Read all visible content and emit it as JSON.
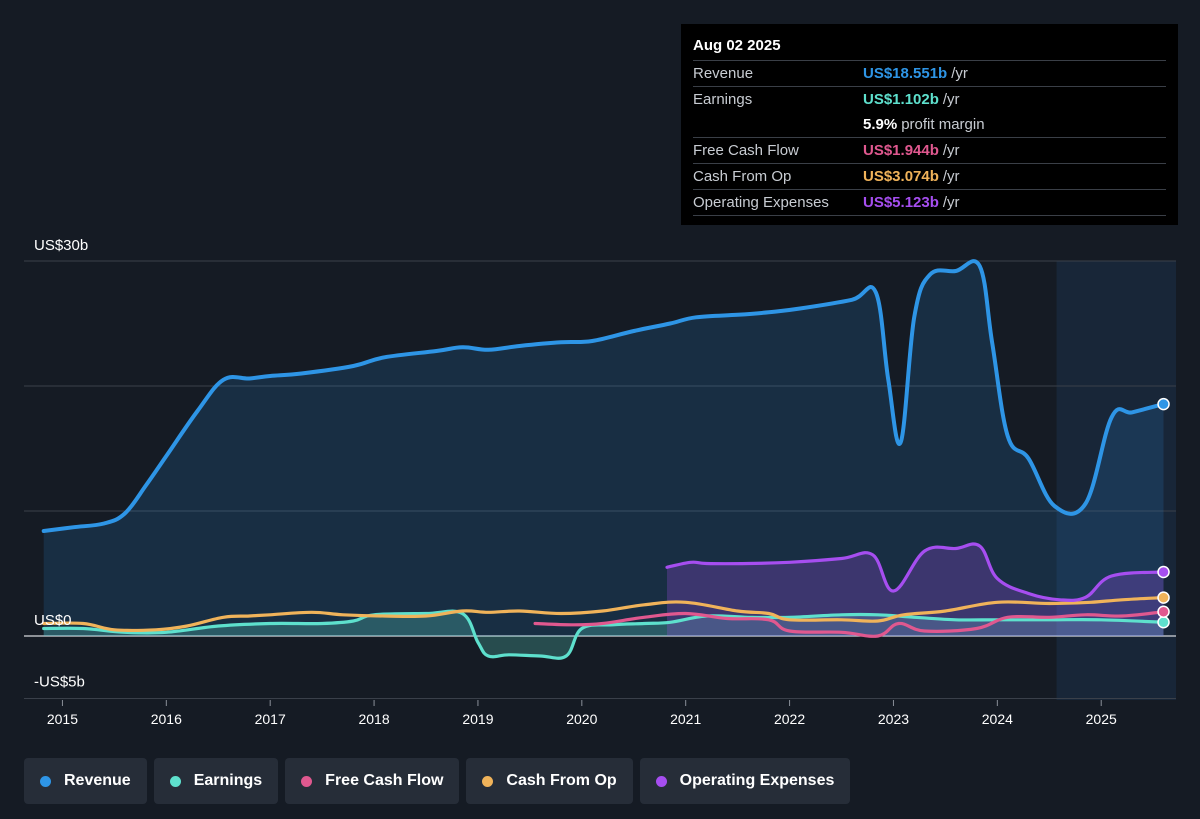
{
  "tooltip": {
    "date": "Aug 02 2025",
    "rows": [
      {
        "label": "Revenue",
        "value": "US$18.551b",
        "unit": "/yr",
        "color": "#2e95e6"
      },
      {
        "label": "Earnings",
        "value": "US$1.102b",
        "unit": "/yr",
        "color": "#5ee0cd"
      },
      {
        "label": "",
        "value": "5.9%",
        "unit": "profit margin",
        "color": "#ffffff"
      },
      {
        "label": "Free Cash Flow",
        "value": "US$1.944b",
        "unit": "/yr",
        "color": "#e0588f"
      },
      {
        "label": "Cash From Op",
        "value": "US$3.074b",
        "unit": "/yr",
        "color": "#f0b35a"
      },
      {
        "label": "Operating Expenses",
        "value": "US$5.123b",
        "unit": "/yr",
        "color": "#a64ef0"
      }
    ]
  },
  "legend": [
    {
      "label": "Revenue",
      "color": "#2e95e6"
    },
    {
      "label": "Earnings",
      "color": "#5ee0cd"
    },
    {
      "label": "Free Cash Flow",
      "color": "#e0588f"
    },
    {
      "label": "Cash From Op",
      "color": "#f0b35a"
    },
    {
      "label": "Operating Expenses",
      "color": "#a64ef0"
    }
  ],
  "chart_data": {
    "type": "line",
    "title": "",
    "xlabel": "",
    "ylabel": "",
    "xlim": [
      2014.63,
      2025.72
    ],
    "ylim": [
      -5,
      30
    ],
    "y_tick_labels": [
      {
        "value": 30,
        "label": "US$30b"
      },
      {
        "value": 0,
        "label": "US$0"
      },
      {
        "value": -5,
        "label": "-US$5b"
      }
    ],
    "gridlines": [
      30,
      20,
      10,
      0,
      -5
    ],
    "x_ticks": [
      "2015",
      "2016",
      "2017",
      "2018",
      "2019",
      "2020",
      "2021",
      "2022",
      "2023",
      "2024",
      "2025"
    ],
    "forecast_shade_start": 2024.57,
    "series": [
      {
        "name": "Revenue",
        "color": "#2e95e6",
        "fill": true,
        "points": [
          [
            2014.82,
            8.4
          ],
          [
            2015.1,
            8.7
          ],
          [
            2015.4,
            9.0
          ],
          [
            2015.6,
            9.8
          ],
          [
            2015.8,
            12.0
          ],
          [
            2016.0,
            14.4
          ],
          [
            2016.3,
            18.0
          ],
          [
            2016.55,
            20.5
          ],
          [
            2016.8,
            20.6
          ],
          [
            2017.0,
            20.8
          ],
          [
            2017.3,
            21.0
          ],
          [
            2017.8,
            21.6
          ],
          [
            2018.1,
            22.3
          ],
          [
            2018.6,
            22.8
          ],
          [
            2018.85,
            23.1
          ],
          [
            2019.1,
            22.9
          ],
          [
            2019.4,
            23.2
          ],
          [
            2019.8,
            23.5
          ],
          [
            2020.1,
            23.6
          ],
          [
            2020.5,
            24.4
          ],
          [
            2020.85,
            25.0
          ],
          [
            2021.1,
            25.5
          ],
          [
            2021.5,
            25.7
          ],
          [
            2021.8,
            25.9
          ],
          [
            2022.1,
            26.2
          ],
          [
            2022.6,
            26.9
          ],
          [
            2022.83,
            27.5
          ],
          [
            2022.95,
            20.5
          ],
          [
            2023.07,
            15.5
          ],
          [
            2023.2,
            25.5
          ],
          [
            2023.35,
            28.9
          ],
          [
            2023.6,
            29.2
          ],
          [
            2023.83,
            29.6
          ],
          [
            2023.95,
            23.5
          ],
          [
            2024.1,
            16.0
          ],
          [
            2024.3,
            14.2
          ],
          [
            2024.55,
            10.4
          ],
          [
            2024.85,
            10.6
          ],
          [
            2025.1,
            17.5
          ],
          [
            2025.3,
            17.9
          ],
          [
            2025.6,
            18.55
          ]
        ]
      },
      {
        "name": "Earnings",
        "color": "#5ee0cd",
        "fill": true,
        "points": [
          [
            2014.82,
            0.6
          ],
          [
            2015.2,
            0.6
          ],
          [
            2015.6,
            0.3
          ],
          [
            2016.0,
            0.3
          ],
          [
            2016.5,
            0.8
          ],
          [
            2017.0,
            1.0
          ],
          [
            2017.5,
            1.0
          ],
          [
            2017.8,
            1.2
          ],
          [
            2018.0,
            1.7
          ],
          [
            2018.5,
            1.8
          ],
          [
            2018.85,
            1.8
          ],
          [
            2019.0,
            -0.5
          ],
          [
            2019.1,
            -1.6
          ],
          [
            2019.3,
            -1.5
          ],
          [
            2019.6,
            -1.6
          ],
          [
            2019.85,
            -1.6
          ],
          [
            2020.0,
            0.6
          ],
          [
            2020.3,
            0.9
          ],
          [
            2020.6,
            1.0
          ],
          [
            2020.85,
            1.1
          ],
          [
            2021.2,
            1.6
          ],
          [
            2021.6,
            1.5
          ],
          [
            2022.0,
            1.5
          ],
          [
            2022.5,
            1.7
          ],
          [
            2022.85,
            1.7
          ],
          [
            2023.2,
            1.5
          ],
          [
            2023.6,
            1.3
          ],
          [
            2024.0,
            1.3
          ],
          [
            2024.5,
            1.3
          ],
          [
            2025.0,
            1.3
          ],
          [
            2025.6,
            1.1
          ]
        ]
      },
      {
        "name": "Free Cash Flow",
        "color": "#e0588f",
        "fill": false,
        "points": [
          [
            2019.55,
            1.0
          ],
          [
            2019.9,
            0.9
          ],
          [
            2020.2,
            1.0
          ],
          [
            2020.6,
            1.5
          ],
          [
            2021.0,
            1.8
          ],
          [
            2021.4,
            1.4
          ],
          [
            2021.8,
            1.3
          ],
          [
            2022.0,
            0.4
          ],
          [
            2022.5,
            0.3
          ],
          [
            2022.85,
            0.0
          ],
          [
            2023.05,
            1.0
          ],
          [
            2023.3,
            0.4
          ],
          [
            2023.8,
            0.6
          ],
          [
            2024.1,
            1.5
          ],
          [
            2024.5,
            1.5
          ],
          [
            2024.85,
            1.7
          ],
          [
            2025.2,
            1.6
          ],
          [
            2025.6,
            1.94
          ]
        ]
      },
      {
        "name": "Cash From Op",
        "color": "#f0b35a",
        "fill": false,
        "points": [
          [
            2014.82,
            1.0
          ],
          [
            2015.2,
            1.0
          ],
          [
            2015.5,
            0.5
          ],
          [
            2015.9,
            0.5
          ],
          [
            2016.2,
            0.8
          ],
          [
            2016.55,
            1.5
          ],
          [
            2016.8,
            1.6
          ],
          [
            2017.0,
            1.7
          ],
          [
            2017.4,
            1.9
          ],
          [
            2017.7,
            1.7
          ],
          [
            2018.1,
            1.6
          ],
          [
            2018.5,
            1.6
          ],
          [
            2018.85,
            2.0
          ],
          [
            2019.1,
            1.9
          ],
          [
            2019.4,
            2.0
          ],
          [
            2019.8,
            1.8
          ],
          [
            2020.2,
            2.0
          ],
          [
            2020.6,
            2.5
          ],
          [
            2021.0,
            2.7
          ],
          [
            2021.5,
            2.0
          ],
          [
            2021.8,
            1.8
          ],
          [
            2022.0,
            1.3
          ],
          [
            2022.5,
            1.3
          ],
          [
            2022.85,
            1.2
          ],
          [
            2023.1,
            1.7
          ],
          [
            2023.5,
            2.0
          ],
          [
            2024.0,
            2.7
          ],
          [
            2024.5,
            2.6
          ],
          [
            2024.9,
            2.7
          ],
          [
            2025.2,
            2.9
          ],
          [
            2025.6,
            3.07
          ]
        ]
      },
      {
        "name": "Operating Expenses",
        "color": "#a64ef0",
        "fill": true,
        "points": [
          [
            2020.82,
            5.5
          ],
          [
            2021.05,
            5.9
          ],
          [
            2021.2,
            5.8
          ],
          [
            2021.6,
            5.8
          ],
          [
            2022.0,
            5.9
          ],
          [
            2022.5,
            6.2
          ],
          [
            2022.8,
            6.5
          ],
          [
            2023.0,
            3.6
          ],
          [
            2023.3,
            6.8
          ],
          [
            2023.6,
            7.0
          ],
          [
            2023.83,
            7.2
          ],
          [
            2024.0,
            4.6
          ],
          [
            2024.3,
            3.4
          ],
          [
            2024.6,
            2.9
          ],
          [
            2024.85,
            3.1
          ],
          [
            2025.1,
            4.8
          ],
          [
            2025.6,
            5.12
          ]
        ]
      }
    ]
  }
}
